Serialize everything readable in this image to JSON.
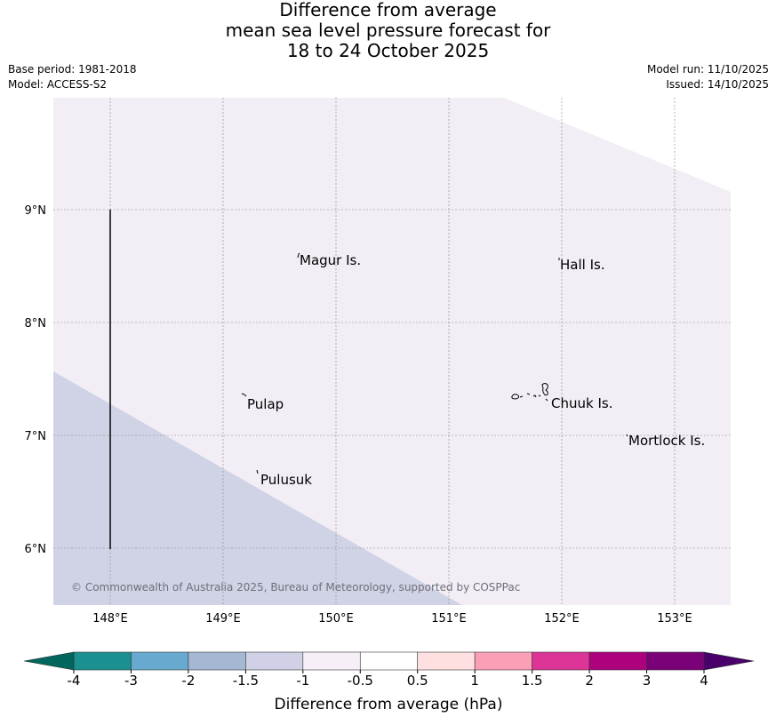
{
  "title": {
    "line1": "Difference from average",
    "line2": "mean sea level pressure forecast for",
    "line3": "18 to 24 October 2025"
  },
  "meta": {
    "base_period": "Base period: 1981-2018",
    "model": "Model: ACCESS-S2",
    "model_run": "Model run: 11/10/2025",
    "issued": "Issued: 14/10/2025"
  },
  "map": {
    "lat_labels": [
      "9°N",
      "8°N",
      "7°N",
      "6°N"
    ],
    "lon_labels": [
      "148°E",
      "149°E",
      "150°E",
      "151°E",
      "152°E",
      "153°E"
    ],
    "places": [
      "Magur Is.",
      "Hall Is.",
      "Pulap",
      "Chuuk Is.",
      "Mortlock Is.",
      "Pulusuk"
    ],
    "copyright": "© Commonwealth of Australia 2025, Bureau of Meteorology, supported by COSPPac",
    "fill_colors": {
      "band_-1_to_-0.5": "#f3edf5",
      "band_-1.5_to_-1": "#d0d3e6"
    }
  },
  "legend": {
    "ticks": [
      "-4",
      "-3",
      "-2",
      "-1.5",
      "-1",
      "-0.5",
      "0.5",
      "1",
      "1.5",
      "2",
      "3",
      "4"
    ],
    "colors": [
      "#1b9090",
      "#67a9cf",
      "#a6b7d4",
      "#d0d1e6",
      "#f6eff7",
      "#ffffff",
      "#fee0e0",
      "#fa9fb5",
      "#dd3497",
      "#ae017e",
      "#7a0177"
    ],
    "under_color": "#01665e",
    "over_color": "#49006a",
    "label": "Difference from average (hPa)"
  }
}
